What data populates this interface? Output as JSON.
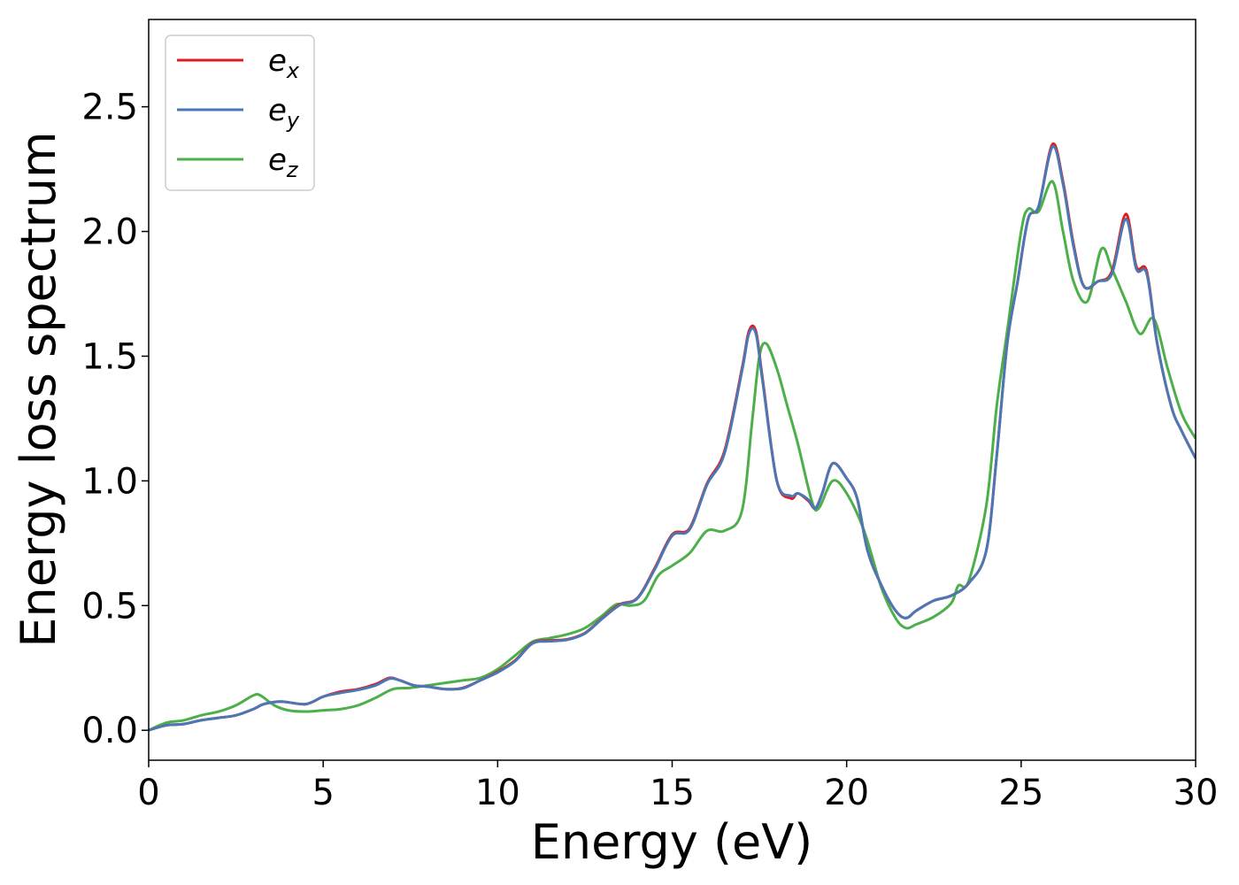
{
  "chart_data": {
    "type": "line",
    "title": "",
    "xlabel": "Energy (eV)",
    "ylabel": "Energy loss spectrum",
    "xlim": [
      0,
      30
    ],
    "ylim": [
      -0.12,
      2.85
    ],
    "xticks": [
      "0",
      "5",
      "10",
      "15",
      "20",
      "25",
      "30"
    ],
    "yticks": [
      "0.0",
      "0.5",
      "1.0",
      "1.5",
      "2.0",
      "2.5"
    ],
    "grid": false,
    "legend_position": "top-left",
    "series": [
      {
        "name": "e",
        "subscript": "x",
        "color": "#e41a1c",
        "x": [
          0,
          0.5,
          1,
          1.5,
          2,
          2.5,
          3,
          3.3,
          3.8,
          4.5,
          5,
          5.5,
          6,
          6.5,
          6.9,
          7.2,
          7.6,
          8,
          8.5,
          9,
          9.5,
          10,
          10.5,
          11,
          11.5,
          12,
          12.5,
          13,
          13.5,
          14,
          14.5,
          15,
          15.5,
          16,
          16.5,
          17,
          17.2,
          17.4,
          17.6,
          18,
          18.4,
          18.6,
          18.9,
          19.1,
          19.3,
          19.6,
          20,
          20.3,
          20.6,
          21,
          21.4,
          21.7,
          22,
          22.5,
          23,
          23.5,
          24,
          24.3,
          24.6,
          24.9,
          25.2,
          25.5,
          25.9,
          26.2,
          26.5,
          26.8,
          27.2,
          27.6,
          28,
          28.3,
          28.6,
          28.9,
          29.3,
          29.6,
          30
        ],
        "values": [
          0.0,
          0.02,
          0.025,
          0.04,
          0.05,
          0.06,
          0.085,
          0.105,
          0.115,
          0.105,
          0.135,
          0.155,
          0.165,
          0.185,
          0.21,
          0.2,
          0.18,
          0.175,
          0.165,
          0.17,
          0.2,
          0.235,
          0.28,
          0.35,
          0.36,
          0.365,
          0.39,
          0.45,
          0.505,
          0.53,
          0.65,
          0.785,
          0.81,
          0.99,
          1.12,
          1.45,
          1.6,
          1.6,
          1.4,
          1.0,
          0.93,
          0.95,
          0.92,
          0.89,
          0.95,
          1.07,
          1.01,
          0.93,
          0.72,
          0.58,
          0.48,
          0.45,
          0.48,
          0.52,
          0.54,
          0.59,
          0.72,
          1.1,
          1.55,
          1.8,
          2.05,
          2.1,
          2.35,
          2.2,
          1.95,
          1.78,
          1.8,
          1.84,
          2.07,
          1.86,
          1.84,
          1.55,
          1.3,
          1.2,
          1.09
        ]
      },
      {
        "name": "e",
        "subscript": "y",
        "color": "#4a78b4",
        "x": [
          0,
          0.5,
          1,
          1.5,
          2,
          2.5,
          3,
          3.3,
          3.8,
          4.5,
          5,
          5.5,
          6,
          6.5,
          6.9,
          7.2,
          7.6,
          8,
          8.5,
          9,
          9.5,
          10,
          10.5,
          11,
          11.5,
          12,
          12.5,
          13,
          13.5,
          14,
          14.5,
          15,
          15.5,
          16,
          16.5,
          17,
          17.2,
          17.4,
          17.6,
          18,
          18.4,
          18.6,
          18.9,
          19.1,
          19.3,
          19.6,
          20,
          20.3,
          20.6,
          21,
          21.4,
          21.7,
          22,
          22.5,
          23,
          23.5,
          24,
          24.3,
          24.6,
          24.9,
          25.2,
          25.5,
          25.9,
          26.2,
          26.5,
          26.8,
          27.2,
          27.6,
          28,
          28.3,
          28.6,
          28.9,
          29.3,
          29.6,
          30
        ],
        "values": [
          0.0,
          0.02,
          0.025,
          0.04,
          0.05,
          0.06,
          0.085,
          0.105,
          0.115,
          0.105,
          0.135,
          0.15,
          0.162,
          0.18,
          0.207,
          0.2,
          0.18,
          0.175,
          0.165,
          0.168,
          0.2,
          0.232,
          0.277,
          0.348,
          0.357,
          0.363,
          0.388,
          0.448,
          0.502,
          0.528,
          0.645,
          0.78,
          0.805,
          0.985,
          1.11,
          1.44,
          1.59,
          1.59,
          1.39,
          1.0,
          0.94,
          0.95,
          0.925,
          0.89,
          0.95,
          1.07,
          1.01,
          0.93,
          0.72,
          0.58,
          0.48,
          0.45,
          0.48,
          0.52,
          0.54,
          0.59,
          0.72,
          1.1,
          1.55,
          1.8,
          2.05,
          2.1,
          2.34,
          2.19,
          1.94,
          1.78,
          1.8,
          1.83,
          2.05,
          1.85,
          1.83,
          1.55,
          1.3,
          1.2,
          1.09
        ]
      },
      {
        "name": "e",
        "subscript": "z",
        "color": "#4daf4a",
        "x": [
          0,
          0.5,
          1,
          1.5,
          2,
          2.5,
          3,
          3.2,
          3.6,
          4,
          4.5,
          5,
          5.5,
          6,
          6.5,
          7,
          7.5,
          8,
          8.5,
          9,
          9.5,
          10,
          10.5,
          11,
          11.5,
          12,
          12.5,
          13,
          13.4,
          13.8,
          14.2,
          14.6,
          15,
          15.5,
          16,
          16.5,
          17,
          17.3,
          17.5,
          17.7,
          18,
          18.3,
          18.6,
          19,
          19.2,
          19.6,
          20,
          20.5,
          21,
          21.4,
          21.7,
          22,
          22.5,
          23,
          23.2,
          23.5,
          24,
          24.3,
          24.6,
          25,
          25.2,
          25.5,
          25.9,
          26.2,
          26.5,
          26.9,
          27.3,
          27.6,
          28,
          28.4,
          28.8,
          29.2,
          29.6,
          30
        ],
        "values": [
          0.0,
          0.03,
          0.04,
          0.06,
          0.075,
          0.1,
          0.14,
          0.14,
          0.1,
          0.08,
          0.075,
          0.08,
          0.085,
          0.1,
          0.13,
          0.165,
          0.17,
          0.18,
          0.19,
          0.2,
          0.21,
          0.245,
          0.3,
          0.355,
          0.37,
          0.385,
          0.41,
          0.46,
          0.505,
          0.5,
          0.52,
          0.62,
          0.66,
          0.71,
          0.8,
          0.8,
          0.88,
          1.25,
          1.5,
          1.55,
          1.45,
          1.3,
          1.15,
          0.92,
          0.89,
          1.0,
          0.95,
          0.8,
          0.57,
          0.45,
          0.41,
          0.425,
          0.455,
          0.51,
          0.58,
          0.6,
          0.9,
          1.3,
          1.6,
          2.0,
          2.09,
          2.08,
          2.2,
          2.0,
          1.8,
          1.72,
          1.93,
          1.85,
          1.72,
          1.59,
          1.65,
          1.45,
          1.27,
          1.17
        ]
      }
    ]
  }
}
